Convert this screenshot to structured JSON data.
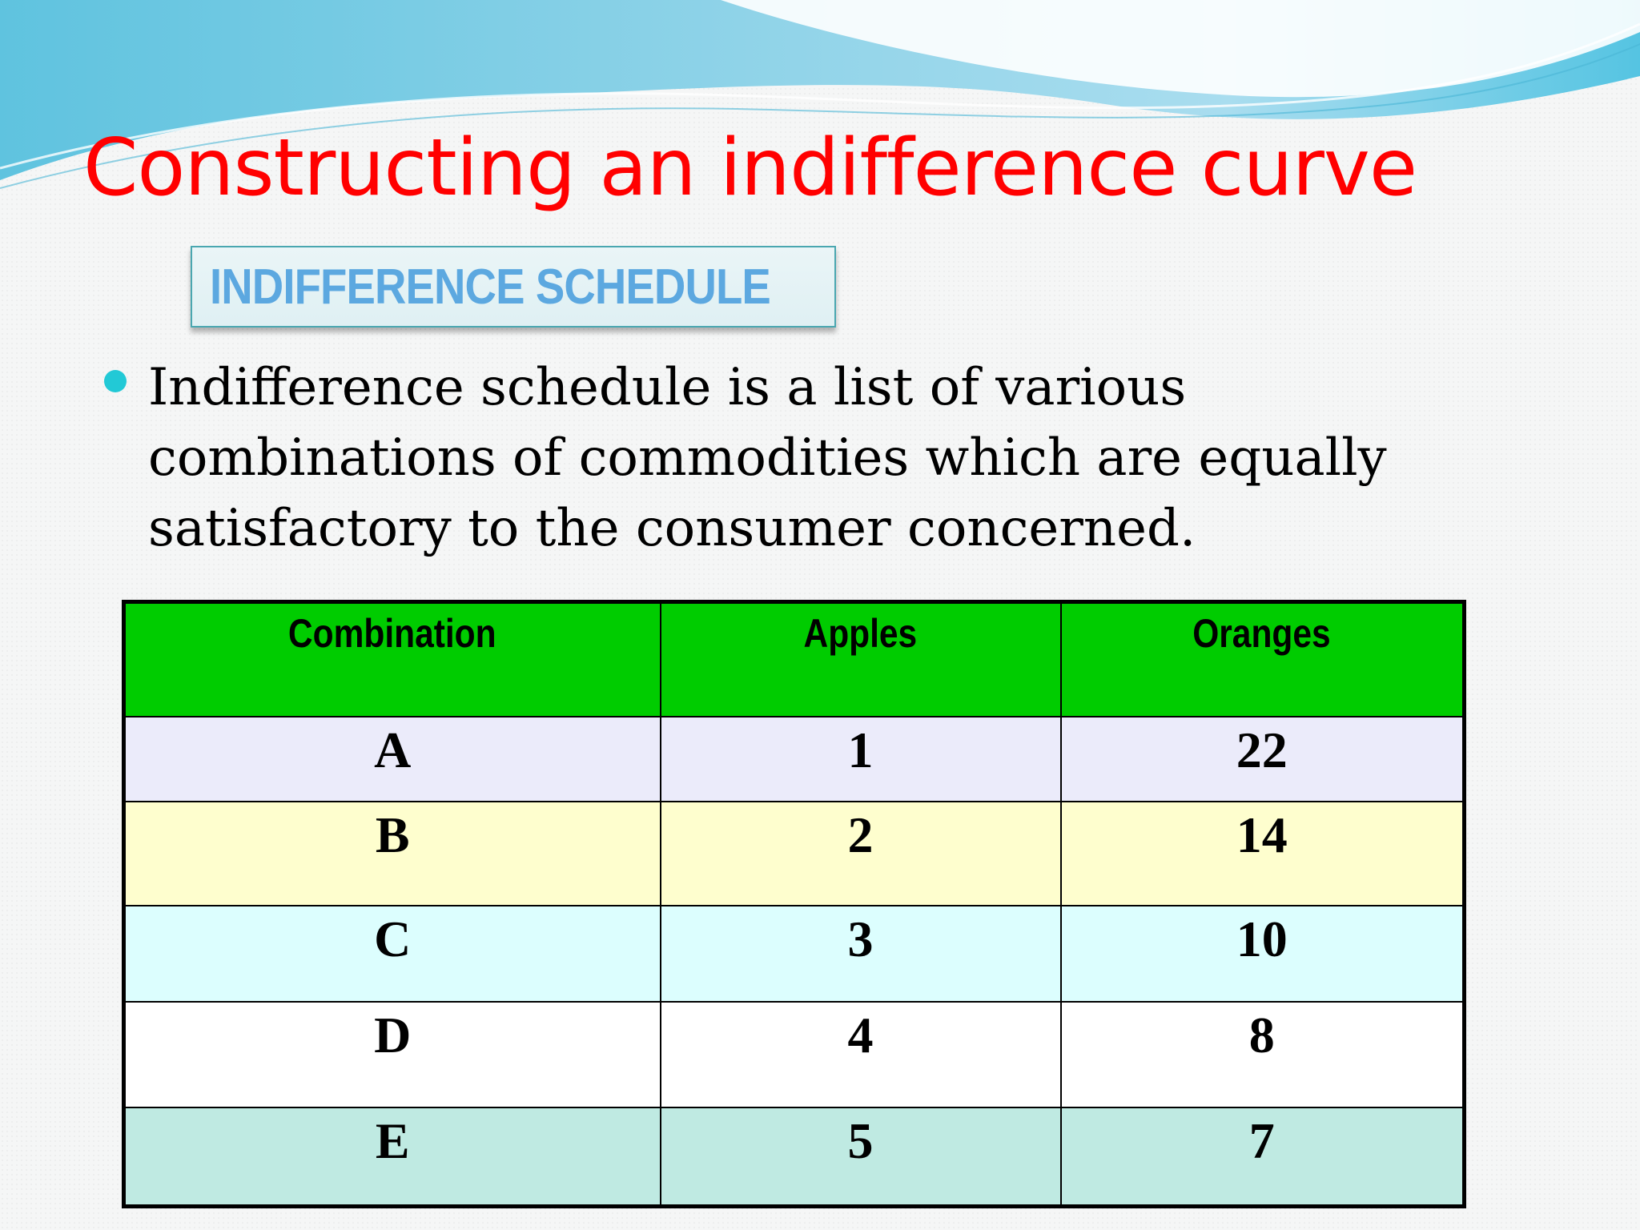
{
  "slide": {
    "title": "Constructing an indifference curve",
    "section_label": "INDIFFERENCE SCHEDULE",
    "bullet_text": "Indifference schedule is a list of various combinations of commodities which are equally satisfactory to the consumer concerned."
  },
  "table": {
    "headers": [
      "Combination",
      "Apples",
      "Oranges"
    ],
    "rows": [
      {
        "combination": "A",
        "apples": "1",
        "oranges": "22"
      },
      {
        "combination": "B",
        "apples": "2",
        "oranges": "14"
      },
      {
        "combination": "C",
        "apples": "3",
        "oranges": "10"
      },
      {
        "combination": "D",
        "apples": "4",
        "oranges": "8"
      },
      {
        "combination": "E",
        "apples": "5",
        "oranges": "7"
      }
    ]
  },
  "colors": {
    "title": "#ff0000",
    "section_label_text": "#5ca8e0",
    "bullet": "#22c9d6",
    "header_row": "#00cc00",
    "row_a": "#ebebfa",
    "row_b": "#fefece",
    "row_c": "#dcfefe",
    "row_d": "#ffffff",
    "row_e": "#bfeae2"
  }
}
